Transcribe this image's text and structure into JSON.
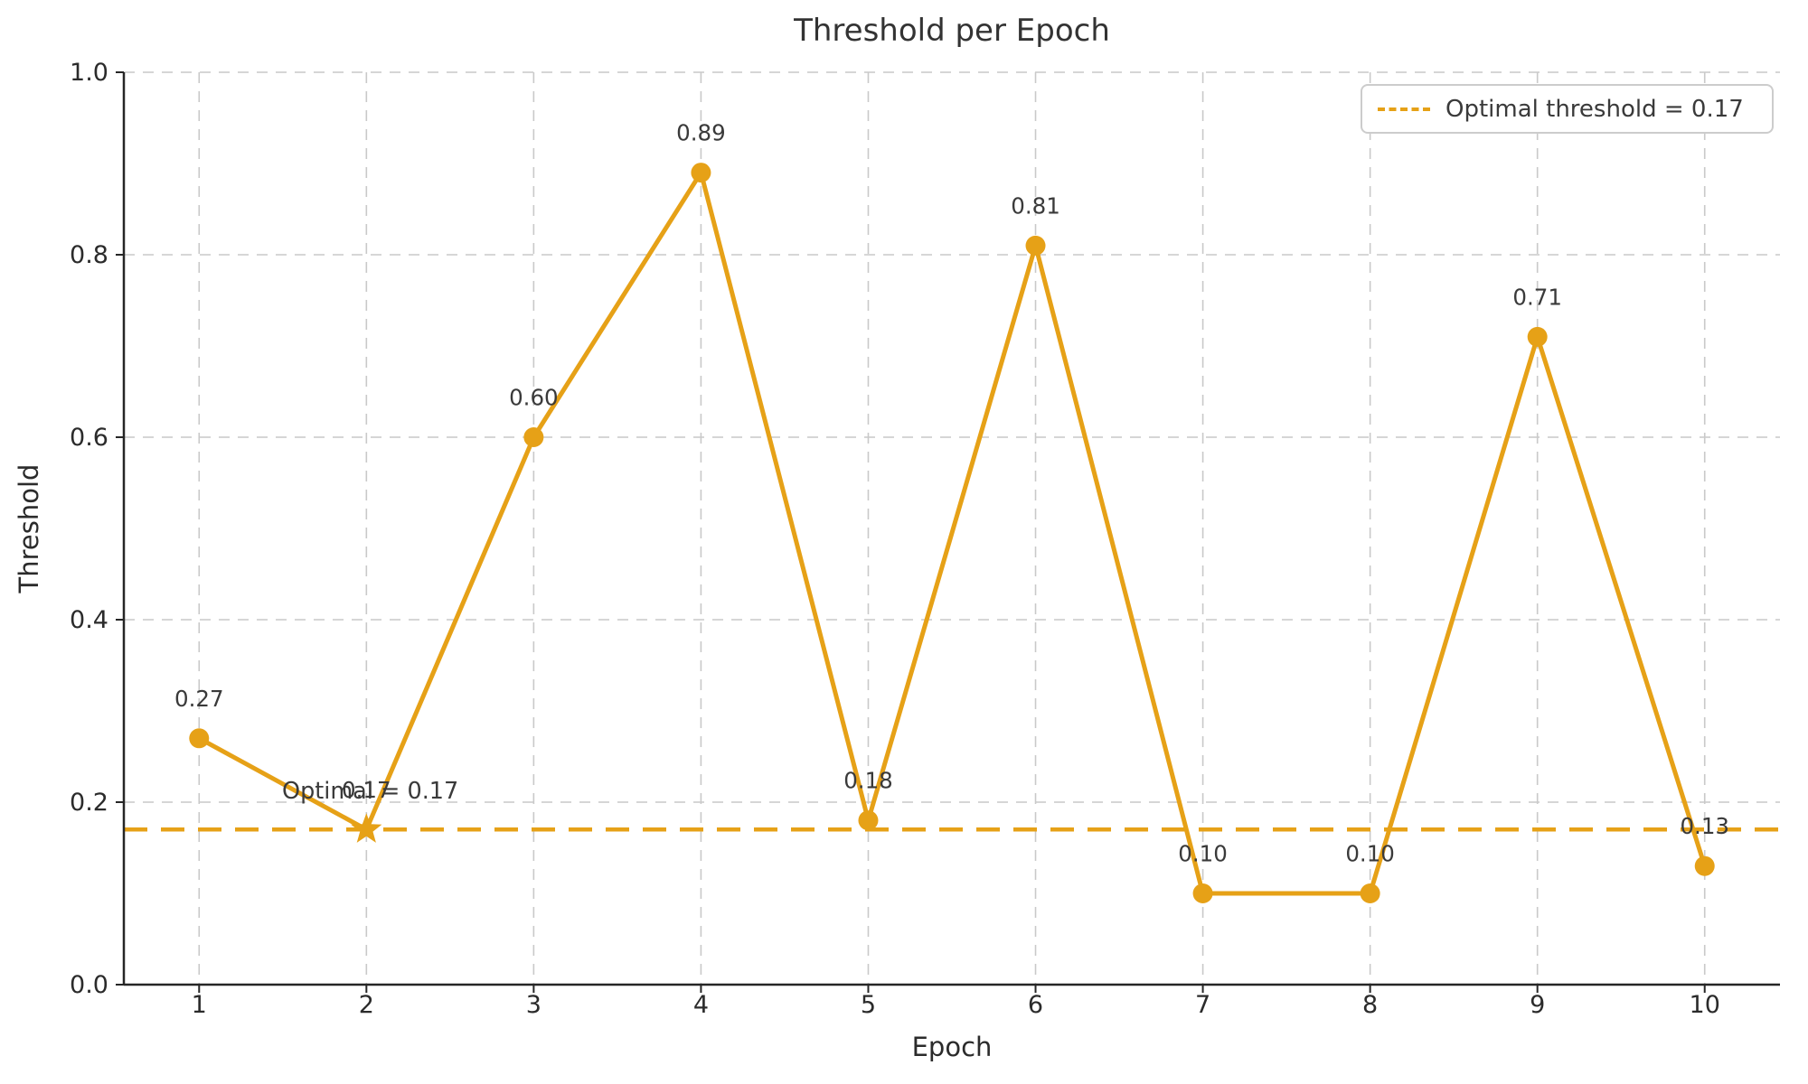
{
  "chart_data": {
    "type": "line",
    "title": "Threshold per Epoch",
    "xlabel": "Epoch",
    "ylabel": "Threshold",
    "x": [
      1,
      2,
      3,
      4,
      5,
      6,
      7,
      8,
      9,
      10
    ],
    "series": [
      {
        "name": "Threshold",
        "values": [
          0.27,
          0.17,
          0.6,
          0.89,
          0.18,
          0.81,
          0.1,
          0.1,
          0.71,
          0.13
        ]
      }
    ],
    "point_labels": [
      "0.27",
      "0.17",
      "0.60",
      "0.89",
      "0.18",
      "0.81",
      "0.10",
      "0.10",
      "0.71",
      "0.13"
    ],
    "optimal_threshold": 0.17,
    "optimal_epoch": 2,
    "optimal_marker": "star",
    "annotation_text": "Optimal = 0.17",
    "legend_label": "Optimal threshold = 0.17",
    "legend_position": "upper right",
    "xticks": [
      1,
      2,
      3,
      4,
      5,
      6,
      7,
      8,
      9,
      10
    ],
    "xtick_labels": [
      "1",
      "2",
      "3",
      "4",
      "5",
      "6",
      "7",
      "8",
      "9",
      "10"
    ],
    "yticks": [
      0.0,
      0.2,
      0.4,
      0.6,
      0.8,
      1.0
    ],
    "ytick_labels": [
      "0.0",
      "0.2",
      "0.4",
      "0.6",
      "0.8",
      "1.0"
    ],
    "ylim": [
      0.0,
      1.0
    ],
    "grid": true,
    "colors": {
      "line": "#E6A117",
      "text": "#3a3a3a",
      "tick_text": "#2b2b2b",
      "grid": "#c9c9c9",
      "spine": "#262626",
      "legend_border": "#cccccc"
    }
  }
}
